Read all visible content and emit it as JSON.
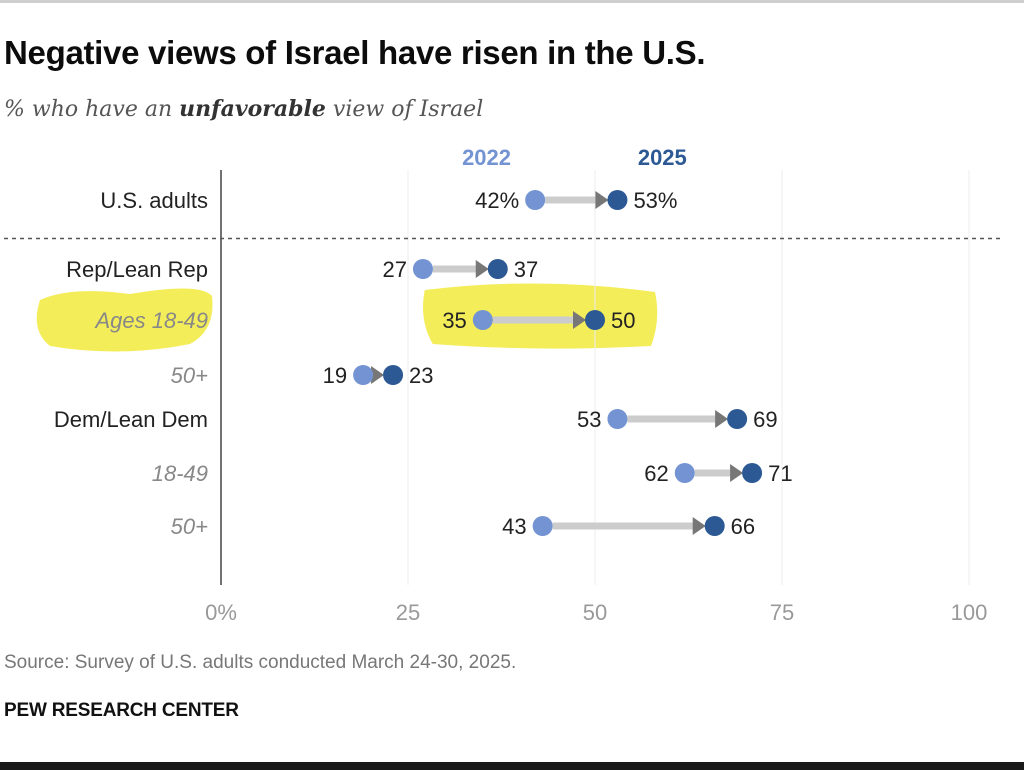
{
  "title": "Negative views of Israel have risen in the U.S.",
  "subtitle": {
    "before": "% who have an ",
    "emphasis": "unfavorable",
    "after": " view of Israel"
  },
  "source": "Source: Survey of U.S. adults conducted March 24-30, 2025.",
  "brand": "PEW RESEARCH CENTER",
  "colors": {
    "year_2022": "#7393d2",
    "year_2025": "#2c5994",
    "arrow": "#cccccc",
    "arrow_head": "#777777",
    "highlight": "#f2ea3d"
  },
  "chart_data": {
    "type": "dumbbell",
    "legend": [
      "2022",
      "2025"
    ],
    "xlim": [
      0,
      100
    ],
    "x_ticks": [
      "0%",
      "25",
      "50",
      "75",
      "100"
    ],
    "x_tick_values": [
      0,
      25,
      50,
      75,
      100
    ],
    "rows": [
      {
        "label": "U.S. adults",
        "sub": false,
        "v2022": 42,
        "v2025": 53,
        "label2022": "42%",
        "label2025": "53%",
        "highlight": false
      },
      {
        "label": "Rep/Lean Rep",
        "sub": false,
        "v2022": 27,
        "v2025": 37,
        "label2022": "27",
        "label2025": "37",
        "highlight": false
      },
      {
        "label": "Ages 18-49",
        "sub": true,
        "v2022": 35,
        "v2025": 50,
        "label2022": "35",
        "label2025": "50",
        "highlight": true
      },
      {
        "label": "50+",
        "sub": true,
        "v2022": 19,
        "v2025": 23,
        "label2022": "19",
        "label2025": "23",
        "highlight": false
      },
      {
        "label": "Dem/Lean Dem",
        "sub": false,
        "v2022": 53,
        "v2025": 69,
        "label2022": "53",
        "label2025": "69",
        "highlight": false
      },
      {
        "label": "18-49",
        "sub": true,
        "v2022": 62,
        "v2025": 71,
        "label2022": "62",
        "label2025": "71",
        "highlight": false
      },
      {
        "label": "50+",
        "sub": true,
        "v2022": 43,
        "v2025": 66,
        "label2022": "43",
        "label2025": "66",
        "highlight": false
      }
    ],
    "divider_after_row": 0
  }
}
